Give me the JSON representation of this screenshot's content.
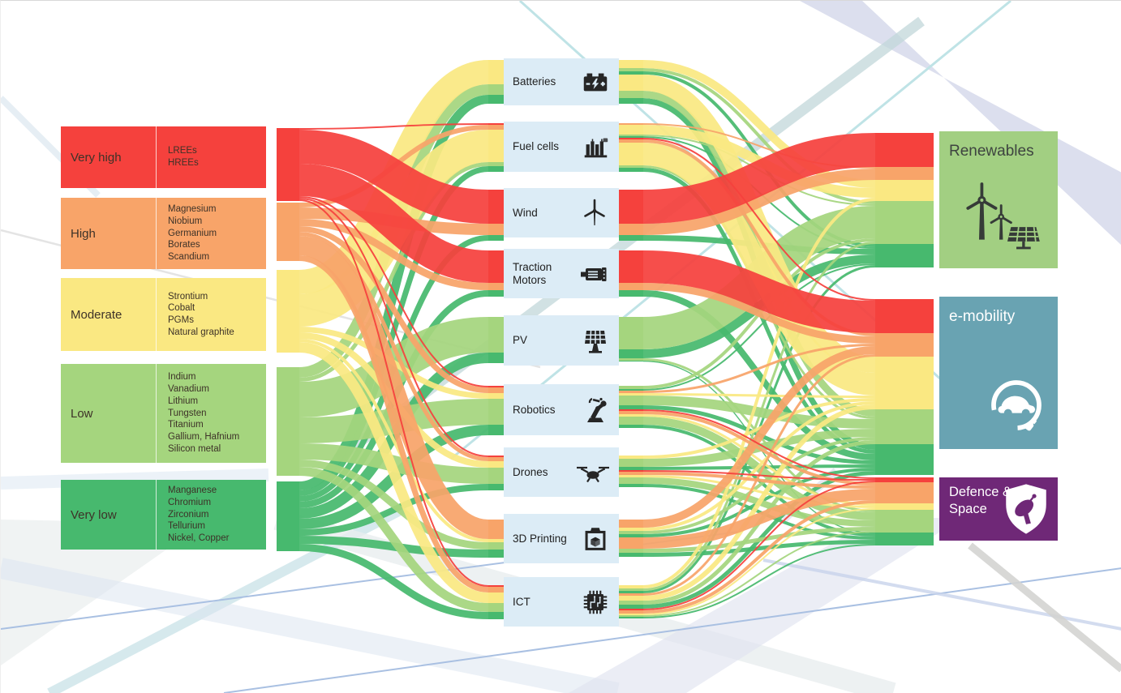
{
  "risk_levels": [
    {
      "label": "Very high",
      "materials": "LREEs\nHREEs",
      "color": "#f5413d"
    },
    {
      "label": "High",
      "materials": "Magnesium\nNiobium\nGermanium\nBorates\nScandium",
      "color": "#f8a469"
    },
    {
      "label": "Moderate",
      "materials": "Strontium\nCobalt\nPGMs\nNatural graphite",
      "color": "#fae882"
    },
    {
      "label": "Low",
      "materials": "Indium\nVanadium\nLithium\nTungsten\nTitanium\nGallium, Hafnium\nSilicon metal",
      "color": "#a5d57e"
    },
    {
      "label": "Very low",
      "materials": "Manganese\nChromium\nZirconium\nTellurium\nNickel, Copper",
      "color": "#47b96e"
    }
  ],
  "technologies": [
    {
      "label": "Batteries",
      "icon": "battery-icon"
    },
    {
      "label": "Fuel cells",
      "icon": "fuel-cell-icon"
    },
    {
      "label": "Wind",
      "icon": "wind-turbine-icon"
    },
    {
      "label": "Traction Motors",
      "icon": "motor-icon"
    },
    {
      "label": "PV",
      "icon": "solar-panel-icon"
    },
    {
      "label": "Robotics",
      "icon": "robot-arm-icon"
    },
    {
      "label": "Drones",
      "icon": "drone-icon"
    },
    {
      "label": "3D Printing",
      "icon": "3d-printer-icon"
    },
    {
      "label": "ICT",
      "icon": "chip-icon"
    }
  ],
  "sectors": [
    {
      "label": "Renewables",
      "color": "#a2cf82",
      "text_color": "#3e4440",
      "icon": "wind-solar-icon"
    },
    {
      "label": "e-mobility",
      "color": "#69a3b2",
      "text_color": "#ffffff",
      "icon": "electric-car-icon"
    },
    {
      "label": "Defence & Space",
      "display_label": "Defence &\nSpace",
      "color": "#6f2877",
      "text_color": "#ffffff",
      "icon": "shield-satellite-icon"
    }
  ],
  "chart_data": {
    "type": "sankey",
    "value_unit": "relative flow thickness, estimated from figure (px)",
    "stages": [
      "supply risk level",
      "technology",
      "sector"
    ],
    "risk_colors": {
      "Very high": "#f5413d",
      "High": "#f8a469",
      "Moderate": "#fae882",
      "Low": "#a5d57e",
      "Very low": "#47b96e"
    },
    "links": [
      {
        "source": "Very high",
        "target": "Fuel cells",
        "risk": "Very high",
        "value": 2
      },
      {
        "source": "Very high",
        "target": "Wind",
        "risk": "Very high",
        "value": 42
      },
      {
        "source": "Very high",
        "target": "Traction Motors",
        "risk": "Very high",
        "value": 40
      },
      {
        "source": "Very high",
        "target": "Robotics",
        "risk": "Very high",
        "value": 2
      },
      {
        "source": "Very high",
        "target": "Drones",
        "risk": "Very high",
        "value": 2
      },
      {
        "source": "Very high",
        "target": "ICT",
        "risk": "Very high",
        "value": 2
      },
      {
        "source": "High",
        "target": "Fuel cells",
        "risk": "High",
        "value": 6
      },
      {
        "source": "High",
        "target": "Wind",
        "risk": "High",
        "value": 14
      },
      {
        "source": "High",
        "target": "Traction Motors",
        "risk": "High",
        "value": 9
      },
      {
        "source": "High",
        "target": "Robotics",
        "risk": "High",
        "value": 7
      },
      {
        "source": "High",
        "target": "Drones",
        "risk": "High",
        "value": 5
      },
      {
        "source": "High",
        "target": "3D Printing",
        "risk": "High",
        "value": 24
      },
      {
        "source": "High",
        "target": "ICT",
        "risk": "High",
        "value": 7
      },
      {
        "source": "Moderate",
        "target": "Batteries",
        "risk": "Moderate",
        "value": 30
      },
      {
        "source": "Moderate",
        "target": "Fuel cells",
        "risk": "Moderate",
        "value": 40
      },
      {
        "source": "Moderate",
        "target": "Robotics",
        "risk": "Moderate",
        "value": 7
      },
      {
        "source": "Moderate",
        "target": "Drones",
        "risk": "Moderate",
        "value": 8
      },
      {
        "source": "Moderate",
        "target": "3D Printing",
        "risk": "Moderate",
        "value": 4
      },
      {
        "source": "Moderate",
        "target": "ICT",
        "risk": "Moderate",
        "value": 13
      },
      {
        "source": "Low",
        "target": "Batteries",
        "risk": "Low",
        "value": 13
      },
      {
        "source": "Low",
        "target": "Fuel cells",
        "risk": "Low",
        "value": 5
      },
      {
        "source": "Low",
        "target": "PV",
        "risk": "Low",
        "value": 44
      },
      {
        "source": "Low",
        "target": "Robotics",
        "risk": "Low",
        "value": 32
      },
      {
        "source": "Low",
        "target": "Drones",
        "risk": "Low",
        "value": 20
      },
      {
        "source": "Low",
        "target": "3D Printing",
        "risk": "Low",
        "value": 9
      },
      {
        "source": "Low",
        "target": "ICT",
        "risk": "Low",
        "value": 11
      },
      {
        "source": "Very low",
        "target": "Batteries",
        "risk": "Very low",
        "value": 11
      },
      {
        "source": "Very low",
        "target": "Fuel cells",
        "risk": "Very low",
        "value": 7
      },
      {
        "source": "Very low",
        "target": "Wind",
        "risk": "Very low",
        "value": 7
      },
      {
        "source": "Very low",
        "target": "Traction Motors",
        "risk": "Very low",
        "value": 8
      },
      {
        "source": "Very low",
        "target": "PV",
        "risk": "Very low",
        "value": 13
      },
      {
        "source": "Very low",
        "target": "Robotics",
        "risk": "Very low",
        "value": 13
      },
      {
        "source": "Very low",
        "target": "Drones",
        "risk": "Very low",
        "value": 8
      },
      {
        "source": "Very low",
        "target": "3D Printing",
        "risk": "Very low",
        "value": 10
      },
      {
        "source": "Very low",
        "target": "ICT",
        "risk": "Very low",
        "value": 9
      },
      {
        "source": "Batteries",
        "target": "Renewables",
        "risk": "Moderate",
        "value": 10
      },
      {
        "source": "Batteries",
        "target": "Renewables",
        "risk": "Low",
        "value": 4
      },
      {
        "source": "Batteries",
        "target": "Renewables",
        "risk": "Very low",
        "value": 4
      },
      {
        "source": "Batteries",
        "target": "e-mobility",
        "risk": "Moderate",
        "value": 20
      },
      {
        "source": "Batteries",
        "target": "e-mobility",
        "risk": "Low",
        "value": 9
      },
      {
        "source": "Batteries",
        "target": "e-mobility",
        "risk": "Very low",
        "value": 7
      },
      {
        "source": "Fuel cells",
        "target": "Renewables",
        "risk": "High",
        "value": 2
      },
      {
        "source": "Fuel cells",
        "target": "Renewables",
        "risk": "Moderate",
        "value": 12
      },
      {
        "source": "Fuel cells",
        "target": "Renewables",
        "risk": "Low",
        "value": 2
      },
      {
        "source": "Fuel cells",
        "target": "Renewables",
        "risk": "Very low",
        "value": 2
      },
      {
        "source": "Fuel cells",
        "target": "e-mobility",
        "risk": "Very high",
        "value": 2
      },
      {
        "source": "Fuel cells",
        "target": "e-mobility",
        "risk": "High",
        "value": 4
      },
      {
        "source": "Fuel cells",
        "target": "e-mobility",
        "risk": "Moderate",
        "value": 28
      },
      {
        "source": "Fuel cells",
        "target": "e-mobility",
        "risk": "Low",
        "value": 3
      },
      {
        "source": "Fuel cells",
        "target": "e-mobility",
        "risk": "Very low",
        "value": 5
      },
      {
        "source": "Wind",
        "target": "Renewables",
        "risk": "Very high",
        "value": 42
      },
      {
        "source": "Wind",
        "target": "Renewables",
        "risk": "High",
        "value": 14
      },
      {
        "source": "Wind",
        "target": "Renewables",
        "risk": "Very low",
        "value": 7
      },
      {
        "source": "Traction Motors",
        "target": "e-mobility",
        "risk": "Very high",
        "value": 40
      },
      {
        "source": "Traction Motors",
        "target": "e-mobility",
        "risk": "High",
        "value": 9
      },
      {
        "source": "Traction Motors",
        "target": "e-mobility",
        "risk": "Very low",
        "value": 8
      },
      {
        "source": "PV",
        "target": "Renewables",
        "risk": "Low",
        "value": 40
      },
      {
        "source": "PV",
        "target": "Renewables",
        "risk": "Very low",
        "value": 11
      },
      {
        "source": "PV",
        "target": "Defence & Space",
        "risk": "Low",
        "value": 3
      },
      {
        "source": "PV",
        "target": "Defence & Space",
        "risk": "Very low",
        "value": 1
      },
      {
        "source": "Robotics",
        "target": "Renewables",
        "risk": "Low",
        "value": 4
      },
      {
        "source": "Robotics",
        "target": "Renewables",
        "risk": "Very low",
        "value": 2
      },
      {
        "source": "Robotics",
        "target": "e-mobility",
        "risk": "High",
        "value": 3
      },
      {
        "source": "Robotics",
        "target": "e-mobility",
        "risk": "Moderate",
        "value": 3
      },
      {
        "source": "Robotics",
        "target": "e-mobility",
        "risk": "Low",
        "value": 12
      },
      {
        "source": "Robotics",
        "target": "e-mobility",
        "risk": "Very low",
        "value": 5
      },
      {
        "source": "Robotics",
        "target": "Defence & Space",
        "risk": "Very high",
        "value": 2
      },
      {
        "source": "Robotics",
        "target": "Defence & Space",
        "risk": "High",
        "value": 4
      },
      {
        "source": "Robotics",
        "target": "Defence & Space",
        "risk": "Moderate",
        "value": 3
      },
      {
        "source": "Robotics",
        "target": "Defence & Space",
        "risk": "Low",
        "value": 10
      },
      {
        "source": "Robotics",
        "target": "Defence & Space",
        "risk": "Very low",
        "value": 4
      },
      {
        "source": "Drones",
        "target": "e-mobility",
        "risk": "Moderate",
        "value": 4
      },
      {
        "source": "Drones",
        "target": "e-mobility",
        "risk": "Low",
        "value": 10
      },
      {
        "source": "Drones",
        "target": "e-mobility",
        "risk": "Very low",
        "value": 4
      },
      {
        "source": "Drones",
        "target": "Defence & Space",
        "risk": "Very high",
        "value": 2
      },
      {
        "source": "Drones",
        "target": "Defence & Space",
        "risk": "High",
        "value": 4
      },
      {
        "source": "Drones",
        "target": "Defence & Space",
        "risk": "Moderate",
        "value": 3
      },
      {
        "source": "Drones",
        "target": "Defence & Space",
        "risk": "Low",
        "value": 8
      },
      {
        "source": "Drones",
        "target": "Defence & Space",
        "risk": "Very low",
        "value": 4
      },
      {
        "source": "3D Printing",
        "target": "e-mobility",
        "risk": "High",
        "value": 10
      },
      {
        "source": "3D Printing",
        "target": "e-mobility",
        "risk": "Moderate",
        "value": 4
      },
      {
        "source": "3D Printing",
        "target": "e-mobility",
        "risk": "Low",
        "value": 4
      },
      {
        "source": "3D Printing",
        "target": "e-mobility",
        "risk": "Very low",
        "value": 4
      },
      {
        "source": "3D Printing",
        "target": "Defence & Space",
        "risk": "High",
        "value": 14
      },
      {
        "source": "3D Printing",
        "target": "Defence & Space",
        "risk": "Low",
        "value": 5
      },
      {
        "source": "3D Printing",
        "target": "Defence & Space",
        "risk": "Very low",
        "value": 5
      },
      {
        "source": "ICT",
        "target": "Renewables",
        "risk": "Moderate",
        "value": 4
      },
      {
        "source": "ICT",
        "target": "Renewables",
        "risk": "Low",
        "value": 3
      },
      {
        "source": "ICT",
        "target": "Renewables",
        "risk": "Very low",
        "value": 3
      },
      {
        "source": "ICT",
        "target": "e-mobility",
        "risk": "High",
        "value": 3
      },
      {
        "source": "ICT",
        "target": "e-mobility",
        "risk": "Moderate",
        "value": 6
      },
      {
        "source": "ICT",
        "target": "e-mobility",
        "risk": "Low",
        "value": 5
      },
      {
        "source": "ICT",
        "target": "e-mobility",
        "risk": "Very low",
        "value": 5
      },
      {
        "source": "ICT",
        "target": "Defence & Space",
        "risk": "Very high",
        "value": 2
      },
      {
        "source": "ICT",
        "target": "Defence & Space",
        "risk": "High",
        "value": 4
      },
      {
        "source": "ICT",
        "target": "Defence & Space",
        "risk": "Moderate",
        "value": 2
      },
      {
        "source": "ICT",
        "target": "Defence & Space",
        "risk": "Low",
        "value": 2
      },
      {
        "source": "ICT",
        "target": "Defence & Space",
        "risk": "Very low",
        "value": 2
      }
    ]
  }
}
